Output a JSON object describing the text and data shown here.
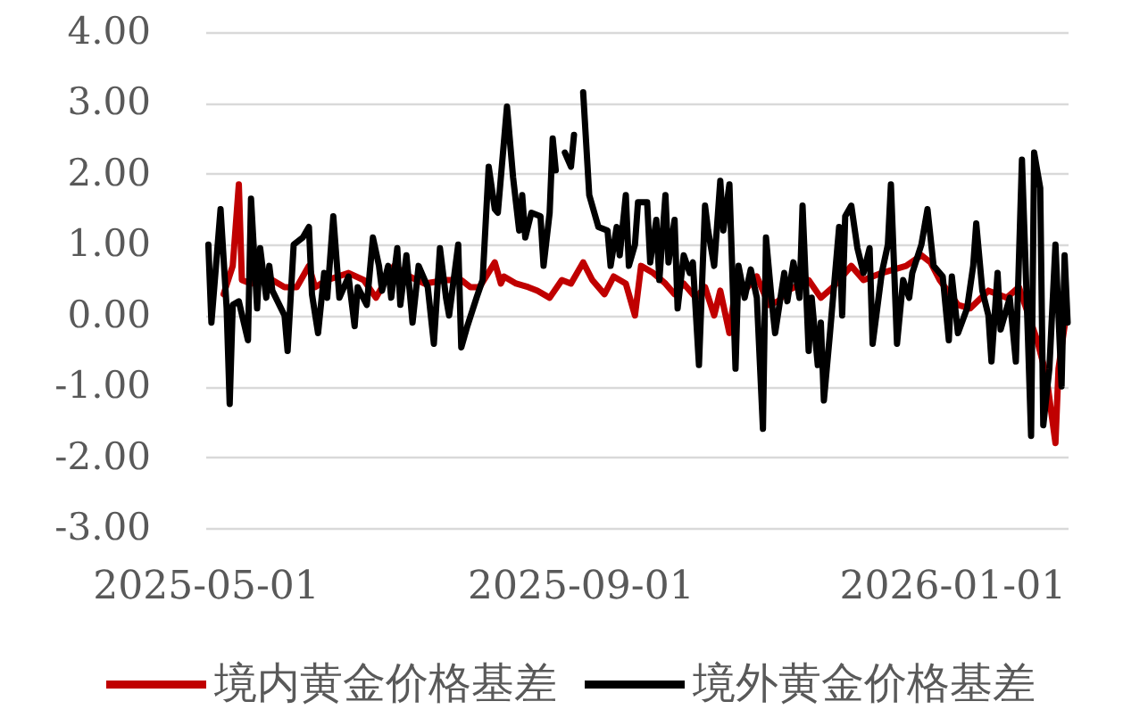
{
  "chart_data": {
    "type": "line",
    "series": [
      {
        "name": "境内黄金价格基差",
        "color": "#c00000",
        "x": [
          "2025-05-07",
          "2025-05-10",
          "2025-05-12",
          "2025-05-13",
          "2025-05-16",
          "2025-05-21",
          "2025-05-27",
          "2025-05-31",
          "2025-06-04",
          "2025-06-06",
          "2025-06-10",
          "2025-06-17",
          "2025-06-22",
          "2025-06-26",
          "2025-07-02",
          "2025-07-07",
          "2025-07-12",
          "2025-07-19",
          "2025-07-24",
          "2025-07-27",
          "2025-07-30",
          "2025-08-04",
          "2025-08-06",
          "2025-08-07",
          "2025-08-11",
          "2025-08-15",
          "2025-08-18",
          "2025-08-22",
          "2025-08-26",
          "2025-08-29",
          "2025-09-02",
          "2025-09-05",
          "2025-09-09",
          "2025-09-12",
          "2025-09-16",
          "2025-09-19",
          "2025-09-21",
          "2025-09-25",
          "2025-09-29",
          "2025-10-02",
          "2025-10-05",
          "2025-10-09",
          "2025-10-12",
          "2025-10-15",
          "2025-10-17",
          "2025-10-20",
          "2025-10-22",
          "2025-10-26",
          "2025-10-29",
          "2025-11-02",
          "2025-11-05",
          "2025-11-08",
          "2025-11-15",
          "2025-11-19",
          "2025-11-23",
          "2025-11-29",
          "2025-12-03",
          "2025-12-09",
          "2025-12-17",
          "2025-12-22",
          "2025-12-25",
          "2025-12-28",
          "2026-01-03",
          "2026-01-07",
          "2026-01-13",
          "2026-01-19",
          "2026-01-23",
          "2026-01-29",
          "2026-02-01",
          "2026-02-04",
          "2026-02-05",
          "2026-02-07"
        ],
        "values": [
          0.3,
          0.7,
          1.85,
          0.5,
          0.45,
          0.55,
          0.4,
          0.4,
          0.7,
          0.4,
          0.5,
          0.6,
          0.5,
          0.25,
          0.7,
          0.55,
          0.45,
          0.5,
          0.5,
          0.4,
          0.4,
          0.75,
          0.45,
          0.55,
          0.45,
          0.4,
          0.35,
          0.25,
          0.5,
          0.45,
          0.75,
          0.5,
          0.3,
          0.55,
          0.45,
          0.0,
          0.7,
          0.6,
          0.45,
          0.3,
          0.45,
          0.25,
          0.4,
          0.0,
          0.35,
          -0.25,
          0.4,
          0.4,
          0.55,
          0.15,
          0.2,
          0.35,
          0.5,
          0.25,
          0.4,
          0.7,
          0.5,
          0.6,
          0.7,
          0.85,
          0.75,
          0.5,
          0.15,
          0.1,
          0.35,
          0.25,
          0.4,
          -0.35,
          -0.85,
          -1.8,
          -0.75,
          -0.15
        ]
      },
      {
        "name": "境外黄金价格基差",
        "color": "#000000",
        "x": [
          "2025-05-02",
          "2025-05-03",
          "2025-05-06",
          "2025-05-08",
          "2025-05-09",
          "2025-05-10",
          "2025-05-12",
          "2025-05-15",
          "2025-05-16",
          "2025-05-18",
          "2025-05-19",
          "2025-05-21",
          "2025-05-22",
          "2025-05-23",
          "2025-05-27",
          "2025-05-28",
          "2025-05-30",
          "2025-06-02",
          "2025-06-04",
          "2025-06-05",
          "2025-06-07",
          "2025-06-09",
          "2025-06-10",
          "2025-06-12",
          "2025-06-14",
          "2025-06-17",
          "2025-06-19",
          "2025-06-20",
          "2025-06-23",
          "2025-06-25",
          "2025-06-27",
          "2025-06-28",
          "2025-06-30",
          "2025-07-01",
          "2025-07-03",
          "2025-07-04",
          "2025-07-06",
          "2025-07-08",
          "2025-07-10",
          "2025-07-13",
          "2025-07-15",
          "2025-07-17",
          "2025-07-19",
          "2025-07-20",
          "2025-07-23",
          "2025-07-24",
          "2025-07-26",
          "2025-07-29",
          "2025-07-31",
          "2025-08-02",
          "2025-08-04",
          "2025-08-05",
          "2025-08-08",
          "2025-08-10",
          "2025-08-12",
          "2025-08-13",
          "2025-08-14",
          "2025-08-16",
          "2025-08-19",
          "2025-08-20",
          "2025-08-22",
          "2025-08-23",
          "2025-08-24",
          "2025-08-26",
          "2025-08-27",
          "2025-08-29",
          "2025-08-30",
          "2025-08-31",
          "2025-09-02",
          "2025-09-04",
          "2025-09-07",
          "2025-09-10",
          "2025-09-11",
          "2025-09-13",
          "2025-09-14",
          "2025-09-16",
          "2025-09-17",
          "2025-09-19",
          "2025-09-20",
          "2025-09-23",
          "2025-09-24",
          "2025-09-26",
          "2025-09-27",
          "2025-09-29",
          "2025-09-30",
          "2025-10-02",
          "2025-10-03",
          "2025-10-05",
          "2025-10-07",
          "2025-10-08",
          "2025-10-10",
          "2025-10-12",
          "2025-10-13",
          "2025-10-15",
          "2025-10-17",
          "2025-10-18",
          "2025-10-20",
          "2025-10-22",
          "2025-10-23",
          "2025-10-25",
          "2025-10-27",
          "2025-10-29",
          "2025-10-31",
          "2025-11-01",
          "2025-11-03",
          "2025-11-04",
          "2025-11-07",
          "2025-11-08",
          "2025-11-10",
          "2025-11-12",
          "2025-11-13",
          "2025-11-15",
          "2025-11-16",
          "2025-11-18",
          "2025-11-19",
          "2025-11-20",
          "2025-11-22",
          "2025-11-25",
          "2025-11-26",
          "2025-11-27",
          "2025-11-29",
          "2025-12-01",
          "2025-12-03",
          "2025-12-05",
          "2025-12-06",
          "2025-12-09",
          "2025-12-11",
          "2025-12-12",
          "2025-12-14",
          "2025-12-16",
          "2025-12-18",
          "2025-12-19",
          "2025-12-22",
          "2025-12-24",
          "2025-12-26",
          "2025-12-29",
          "2025-12-31",
          "2026-01-01",
          "2026-01-03",
          "2026-01-06",
          "2026-01-08",
          "2026-01-09",
          "2026-01-11",
          "2026-01-13",
          "2026-01-14",
          "2026-01-16",
          "2026-01-17",
          "2026-01-20",
          "2026-01-22",
          "2026-01-24",
          "2026-01-25",
          "2026-01-26",
          "2026-01-27",
          "2026-01-28",
          "2026-01-30",
          "2026-01-31",
          "2026-02-02",
          "2026-02-04",
          "2026-02-06",
          "2026-02-07",
          "2026-02-08"
        ],
        "values": [
          1.0,
          -0.1,
          1.5,
          0.1,
          -1.25,
          0.15,
          0.2,
          -0.35,
          1.65,
          0.1,
          0.95,
          0.25,
          0.7,
          0.35,
          0.0,
          -0.5,
          1.0,
          1.1,
          1.25,
          0.3,
          -0.25,
          0.6,
          0.25,
          1.4,
          0.25,
          0.55,
          -0.15,
          0.4,
          0.15,
          1.1,
          0.7,
          0.35,
          0.7,
          0.25,
          0.95,
          0.15,
          0.85,
          -0.1,
          0.7,
          0.4,
          -0.4,
          0.95,
          0.25,
          0.0,
          1.0,
          -0.45,
          -0.15,
          0.25,
          0.5,
          2.1,
          1.5,
          1.45,
          2.95,
          1.95,
          1.2,
          1.7,
          1.1,
          1.45,
          1.4,
          0.7,
          1.45,
          2.5,
          2.05,
          null,
          2.3,
          2.1,
          2.55,
          null,
          3.15,
          1.7,
          1.25,
          1.2,
          0.7,
          1.25,
          0.85,
          1.7,
          0.7,
          1.0,
          1.6,
          1.6,
          0.75,
          1.35,
          0.5,
          1.7,
          0.75,
          1.35,
          0.1,
          0.85,
          0.6,
          0.75,
          -0.7,
          1.55,
          1.2,
          0.7,
          1.9,
          1.2,
          1.85,
          -0.75,
          0.7,
          0.25,
          0.65,
          0.25,
          -1.6,
          1.1,
          0.15,
          -0.25,
          0.6,
          0.2,
          0.75,
          0.25,
          1.55,
          -0.5,
          0.25,
          -0.7,
          -0.1,
          -1.2,
          -0.25,
          1.25,
          0.0,
          1.4,
          1.55,
          0.95,
          0.6,
          0.95,
          -0.4,
          0.6,
          1.0,
          1.85,
          -0.4,
          0.5,
          0.25,
          0.6,
          1.0,
          1.5,
          0.7,
          0.55,
          -0.35,
          0.55,
          -0.25,
          0.1,
          0.7,
          1.3,
          0.35,
          0.0,
          -0.65,
          0.6,
          -0.2,
          0.25,
          -0.65,
          2.2,
          0.95,
          -0.35,
          -1.7,
          2.3,
          1.8,
          -1.55,
          -0.75,
          1.0,
          -1.0,
          0.85,
          -0.1
        ]
      }
    ],
    "xlim": [
      "2025-05-01",
      "2026-02-08"
    ],
    "xticks": [
      "2025-05-01",
      "2025-09-01",
      "2026-01-01"
    ],
    "ylim": [
      -3,
      4
    ],
    "yticks": [
      {
        "value": -3,
        "label": "-3.00"
      },
      {
        "value": -2,
        "label": "-2.00"
      },
      {
        "value": -1,
        "label": "-1.00"
      },
      {
        "value": 0,
        "label": "0.00"
      },
      {
        "value": 1,
        "label": "1.00"
      },
      {
        "value": 2,
        "label": "2.00"
      },
      {
        "value": 3,
        "label": "3.00"
      },
      {
        "value": 4,
        "label": "4.00"
      }
    ],
    "grid": "y",
    "legend": "bottom",
    "line_style": "solid"
  }
}
